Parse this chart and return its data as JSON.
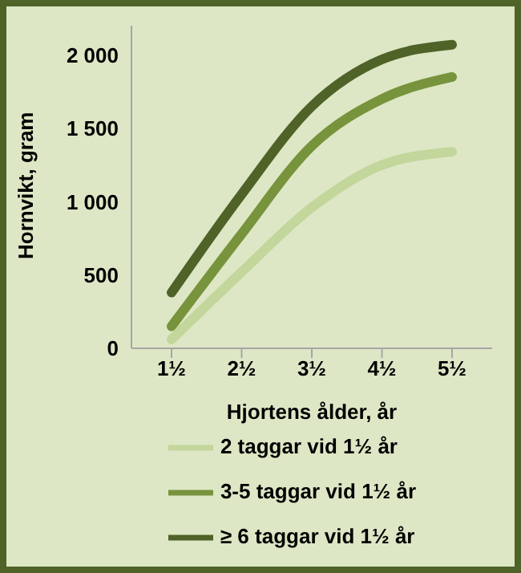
{
  "chart_data": {
    "type": "line",
    "xlabel": "Hjortens ålder, år",
    "ylabel": "Hornvikt, gram",
    "categories": [
      "1½",
      "2½",
      "3½",
      "4½",
      "5½"
    ],
    "series": [
      {
        "name": "≥ 6 taggar vid 1½ år",
        "color": "#4f6228",
        "values": [
          380,
          1050,
          1650,
          1970,
          2070
        ]
      },
      {
        "name": "3-5 taggar vid 1½ år",
        "color": "#77933c",
        "values": [
          150,
          780,
          1380,
          1700,
          1850
        ]
      },
      {
        "name": "2 taggar vid 1½ år",
        "color": "#c3d69b",
        "values": [
          60,
          520,
          960,
          1250,
          1340
        ]
      }
    ],
    "ylim": [
      0,
      2200
    ],
    "yticks": [
      0,
      500,
      {
        "value": 1000,
        "label": "1 000"
      },
      {
        "value": 1500,
        "label": "1 500"
      },
      {
        "value": 2000,
        "label": "2 000"
      }
    ],
    "grid": false,
    "legend": "bottom",
    "marker": "none",
    "line_style": "solid"
  }
}
